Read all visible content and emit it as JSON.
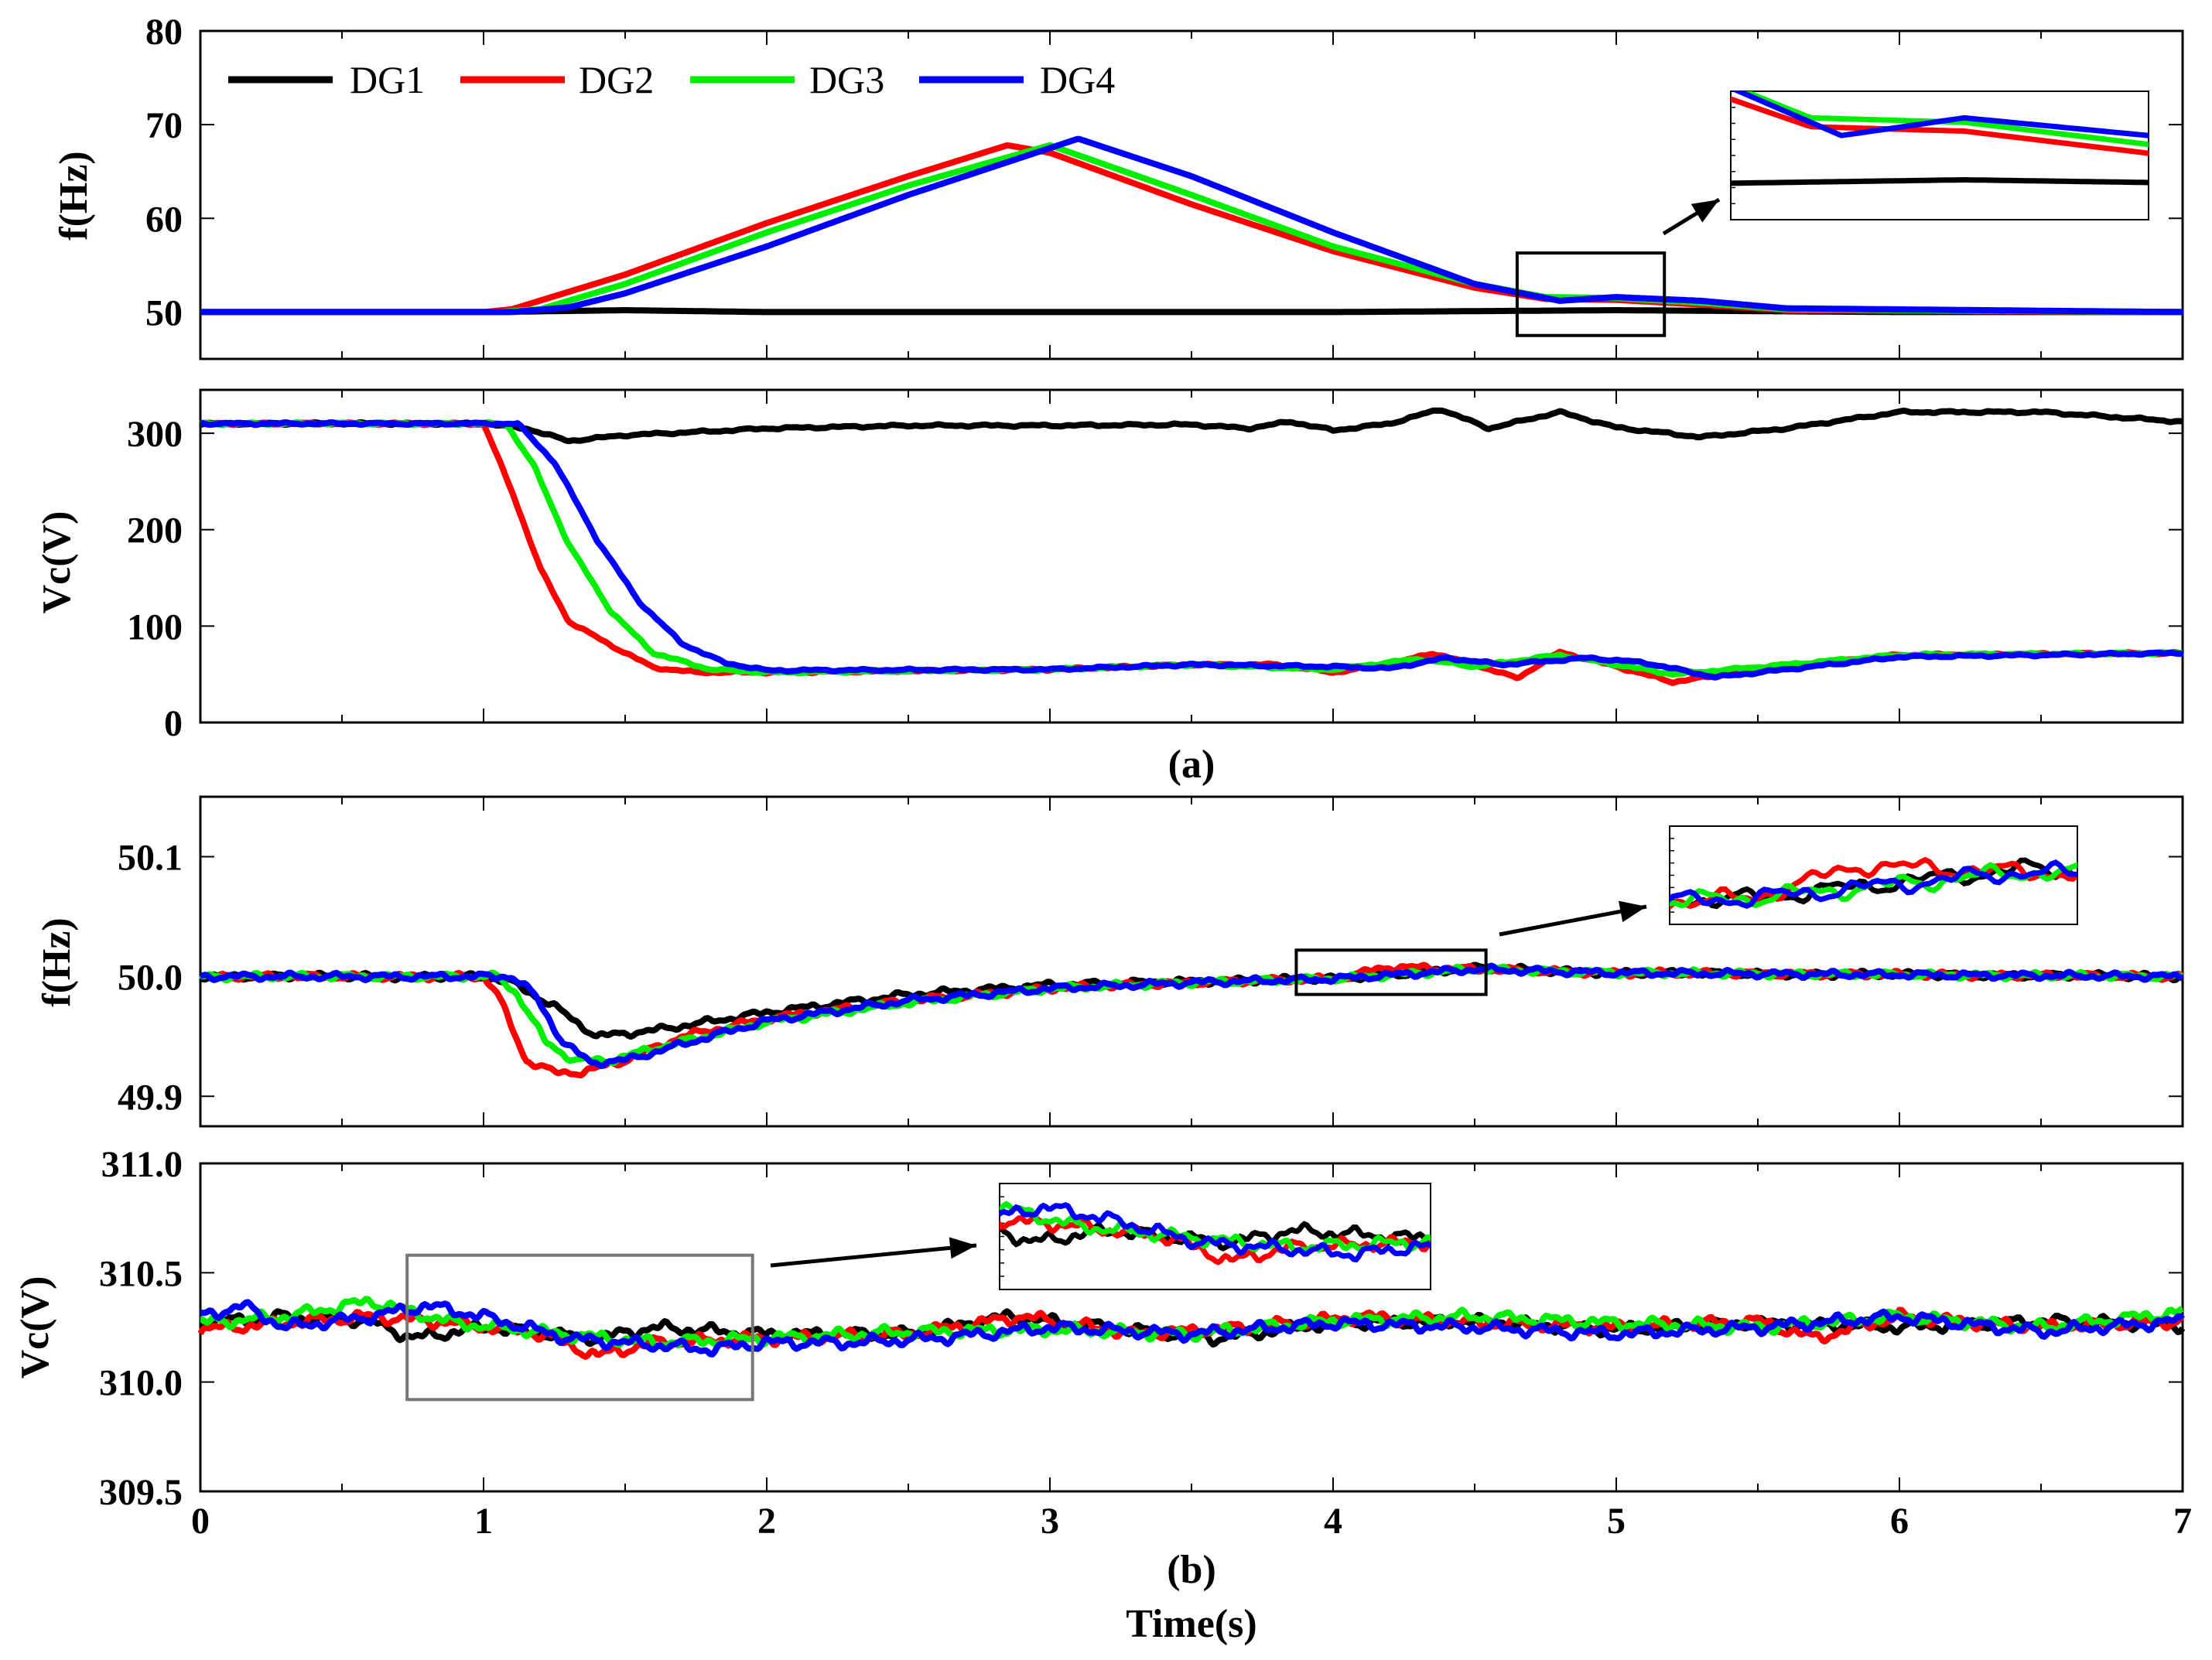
{
  "colors": {
    "DG1": "#000000",
    "DG2": "#ff0000",
    "DG3": "#00ee00",
    "DG4": "#0000ff"
  },
  "chart_data": [
    {
      "id": "a-freq",
      "type": "line",
      "ylabel": "f(Hz)",
      "xlim": [
        0,
        7
      ],
      "ylim": [
        45,
        80
      ],
      "yticks": [
        50,
        60,
        70,
        80
      ],
      "ytick_labels": [
        "50",
        "60",
        "70",
        "80"
      ],
      "legend": [
        "DG1",
        "DG2",
        "DG3",
        "DG4"
      ],
      "legend_location": "top-left",
      "zoom_box": {
        "x": [
          4.65,
          5.17
        ],
        "y": [
          47.5,
          56.3
        ]
      },
      "series": [
        {
          "name": "DG1",
          "x": [
            0,
            1,
            1.5,
            2,
            3,
            4,
            5,
            6,
            7
          ],
          "y": [
            50,
            50,
            50.2,
            50,
            50,
            50,
            50.2,
            50,
            50
          ]
        },
        {
          "name": "DG2",
          "x": [
            0,
            1,
            1.1,
            1.5,
            2,
            2.5,
            2.85,
            3,
            3.5,
            4,
            4.5,
            4.75,
            5.0,
            5.3,
            5.6,
            7
          ],
          "y": [
            50,
            50,
            50.3,
            54,
            59.5,
            64.5,
            67.8,
            67,
            61.5,
            56.5,
            52.6,
            51.4,
            51.3,
            50.8,
            50.2,
            50
          ]
        },
        {
          "name": "DG3",
          "x": [
            0,
            1.05,
            1.2,
            1.5,
            2,
            2.5,
            3.0,
            3.5,
            4,
            4.5,
            4.75,
            5.0,
            5.3,
            5.6,
            7
          ],
          "y": [
            50,
            50,
            50.3,
            53,
            58.5,
            63.5,
            67.8,
            62.5,
            57,
            53,
            51.6,
            51.5,
            51.0,
            50.3,
            50
          ]
        },
        {
          "name": "DG4",
          "x": [
            0,
            1.1,
            1.3,
            1.5,
            2,
            2.5,
            3.1,
            3.5,
            4,
            4.5,
            4.8,
            5.0,
            5.3,
            5.6,
            7
          ],
          "y": [
            50,
            50,
            50.5,
            52,
            57,
            62.5,
            68.5,
            64.5,
            58.5,
            53,
            51.2,
            51.6,
            51.2,
            50.4,
            50
          ]
        }
      ]
    },
    {
      "id": "a-volt",
      "type": "line",
      "ylabel": "Vc(V)",
      "xlim": [
        0,
        7
      ],
      "ylim": [
        0,
        345
      ],
      "yticks": [
        0,
        100,
        200,
        300
      ],
      "ytick_labels": [
        "0",
        "100",
        "200",
        "300"
      ],
      "caption": "(a)",
      "series": [
        {
          "name": "DG1",
          "x": [
            0,
            1.0,
            1.15,
            1.3,
            1.5,
            1.8,
            2,
            2.5,
            3,
            3.5,
            3.7,
            3.85,
            4.0,
            4.2,
            4.38,
            4.55,
            4.8,
            5.0,
            5.3,
            5.6,
            6.0,
            6.5,
            7
          ],
          "y": [
            310,
            310,
            305,
            292,
            298,
            302,
            305,
            308,
            308,
            309,
            305,
            312,
            303,
            310,
            325,
            305,
            322,
            306,
            296,
            305,
            322,
            322,
            312
          ]
        },
        {
          "name": "DG2",
          "x": [
            0,
            1.0,
            1.1,
            1.2,
            1.3,
            1.45,
            1.6,
            1.75,
            2,
            3,
            3.5,
            3.8,
            4.0,
            4.2,
            4.35,
            4.5,
            4.65,
            4.8,
            5.0,
            5.2,
            5.5,
            6,
            7
          ],
          "y": [
            310,
            310,
            240,
            160,
            105,
            80,
            57,
            52,
            52,
            55,
            60,
            60,
            52,
            60,
            72,
            60,
            46,
            73,
            58,
            42,
            55,
            70,
            72
          ]
        },
        {
          "name": "DG3",
          "x": [
            0,
            1.08,
            1.18,
            1.3,
            1.45,
            1.6,
            1.8,
            2,
            3,
            3.5,
            4,
            4.3,
            4.5,
            4.8,
            5.2,
            5.6,
            6,
            7
          ],
          "y": [
            310,
            310,
            265,
            185,
            115,
            72,
            55,
            52,
            55,
            60,
            55,
            66,
            58,
            70,
            50,
            60,
            70,
            72
          ]
        },
        {
          "name": "DG4",
          "x": [
            0,
            1.12,
            1.25,
            1.4,
            1.55,
            1.7,
            1.85,
            2,
            3,
            3.5,
            4,
            4.2,
            4.4,
            4.6,
            4.9,
            5.1,
            5.35,
            5.6,
            6,
            7
          ],
          "y": [
            310,
            310,
            270,
            190,
            125,
            82,
            62,
            54,
            55,
            60,
            58,
            56,
            67,
            60,
            67,
            62,
            47,
            55,
            68,
            72
          ]
        }
      ]
    },
    {
      "id": "b-freq",
      "type": "line",
      "ylabel": "f(Hz)",
      "xlim": [
        0,
        7
      ],
      "ylim": [
        49.875,
        50.15
      ],
      "yticks": [
        49.9,
        50.0,
        50.1
      ],
      "ytick_labels": [
        "49.9",
        "50.0",
        "50.1"
      ],
      "zoom_box": {
        "x": [
          3.87,
          4.54
        ],
        "y": [
          49.985,
          50.022
        ]
      },
      "series": [
        {
          "name": "DG1",
          "x": [
            0,
            1.0,
            1.1,
            1.25,
            1.4,
            1.6,
            2,
            2.5,
            3,
            3.5,
            4,
            4.5,
            5,
            7
          ],
          "y": [
            50,
            50,
            49.995,
            49.975,
            49.95,
            49.955,
            49.97,
            49.985,
            49.993,
            49.996,
            49.998,
            50.007,
            50.003,
            50
          ]
        },
        {
          "name": "DG2",
          "x": [
            0,
            1.0,
            1.05,
            1.15,
            1.25,
            1.35,
            1.5,
            1.7,
            2,
            2.5,
            3,
            3.5,
            4,
            4.2,
            4.5,
            5,
            7
          ],
          "y": [
            50,
            50,
            49.985,
            49.93,
            49.92,
            49.92,
            49.93,
            49.95,
            49.965,
            49.98,
            49.99,
            49.995,
            49.998,
            50.008,
            50.006,
            50.003,
            50
          ]
        },
        {
          "name": "DG3",
          "x": [
            0,
            1.05,
            1.12,
            1.22,
            1.32,
            1.45,
            1.6,
            2,
            2.5,
            3,
            3.5,
            4,
            4.5,
            5,
            7
          ],
          "y": [
            50,
            50,
            49.985,
            49.945,
            49.93,
            49.93,
            49.94,
            49.962,
            49.978,
            49.99,
            49.995,
            49.998,
            50.006,
            50.003,
            50
          ]
        },
        {
          "name": "DG4",
          "x": [
            0,
            1.1,
            1.18,
            1.28,
            1.38,
            1.5,
            1.65,
            2,
            2.5,
            3,
            3.5,
            4,
            4.5,
            5,
            7
          ],
          "y": [
            50,
            50,
            49.985,
            49.945,
            49.928,
            49.93,
            49.94,
            49.963,
            49.98,
            49.99,
            49.995,
            49.998,
            50.006,
            50.003,
            50
          ]
        }
      ]
    },
    {
      "id": "b-volt",
      "type": "line",
      "ylabel": "Vc(V)",
      "xlabel": "Time(s)",
      "xlim": [
        0,
        7
      ],
      "ylim": [
        309.5,
        311.0
      ],
      "yticks": [
        309.5,
        310.0,
        310.5,
        311.0
      ],
      "ytick_labels": [
        "309.5",
        "310.0",
        "310.5",
        "311.0"
      ],
      "xticks": [
        0,
        1,
        2,
        3,
        4,
        5,
        6,
        7
      ],
      "xtick_labels": [
        "0",
        "1",
        "2",
        "3",
        "4",
        "5",
        "6",
        "7"
      ],
      "caption": "(b)",
      "zoom_box": {
        "x": [
          0.73,
          1.95
        ],
        "y": [
          309.92,
          310.58
        ]
      },
      "series": [
        {
          "name": "DG1",
          "x": [
            0,
            0.3,
            0.6,
            0.75,
            1.0,
            1.4,
            1.6,
            2.0,
            2.5,
            2.85,
            3.2,
            3.6,
            4.0,
            4.5,
            5.0,
            5.5,
            6.0,
            6.5,
            7
          ],
          "y": [
            310.27,
            310.3,
            310.28,
            310.2,
            310.25,
            310.2,
            310.25,
            310.22,
            310.22,
            310.3,
            310.25,
            310.2,
            310.27,
            310.28,
            310.24,
            310.27,
            310.25,
            310.28,
            310.26
          ]
        },
        {
          "name": "DG2",
          "x": [
            0,
            0.3,
            0.6,
            0.9,
            1.2,
            1.4,
            1.6,
            2.0,
            2.5,
            2.9,
            3.3,
            3.7,
            4.1,
            4.5,
            5.0,
            5.5,
            5.7,
            6.0,
            6.5,
            7
          ],
          "y": [
            310.24,
            310.27,
            310.3,
            310.27,
            310.22,
            310.12,
            310.18,
            310.2,
            310.22,
            310.3,
            310.22,
            310.25,
            310.3,
            310.27,
            310.25,
            310.28,
            310.2,
            310.3,
            310.25,
            310.28
          ]
        },
        {
          "name": "DG3",
          "x": [
            0,
            0.3,
            0.6,
            0.9,
            1.2,
            1.6,
            2.0,
            2.5,
            3.0,
            3.5,
            4.0,
            4.5,
            5.0,
            5.5,
            6.0,
            6.5,
            7
          ],
          "y": [
            310.27,
            310.3,
            310.37,
            310.27,
            310.23,
            310.18,
            310.2,
            310.23,
            310.24,
            310.22,
            310.28,
            310.3,
            310.27,
            310.25,
            310.3,
            310.25,
            310.32
          ]
        },
        {
          "name": "DG4",
          "x": [
            0,
            0.15,
            0.3,
            0.6,
            0.8,
            1.0,
            1.3,
            1.6,
            1.8,
            2.0,
            2.3,
            2.6,
            3.0,
            3.5,
            4.0,
            4.5,
            5.0,
            5.5,
            6.0,
            6.5,
            7
          ],
          "y": [
            310.3,
            310.35,
            310.25,
            310.3,
            310.35,
            310.3,
            310.2,
            310.17,
            310.15,
            310.18,
            310.18,
            310.2,
            310.25,
            310.22,
            310.27,
            310.25,
            310.22,
            310.25,
            310.3,
            310.23,
            310.28
          ]
        }
      ]
    }
  ]
}
